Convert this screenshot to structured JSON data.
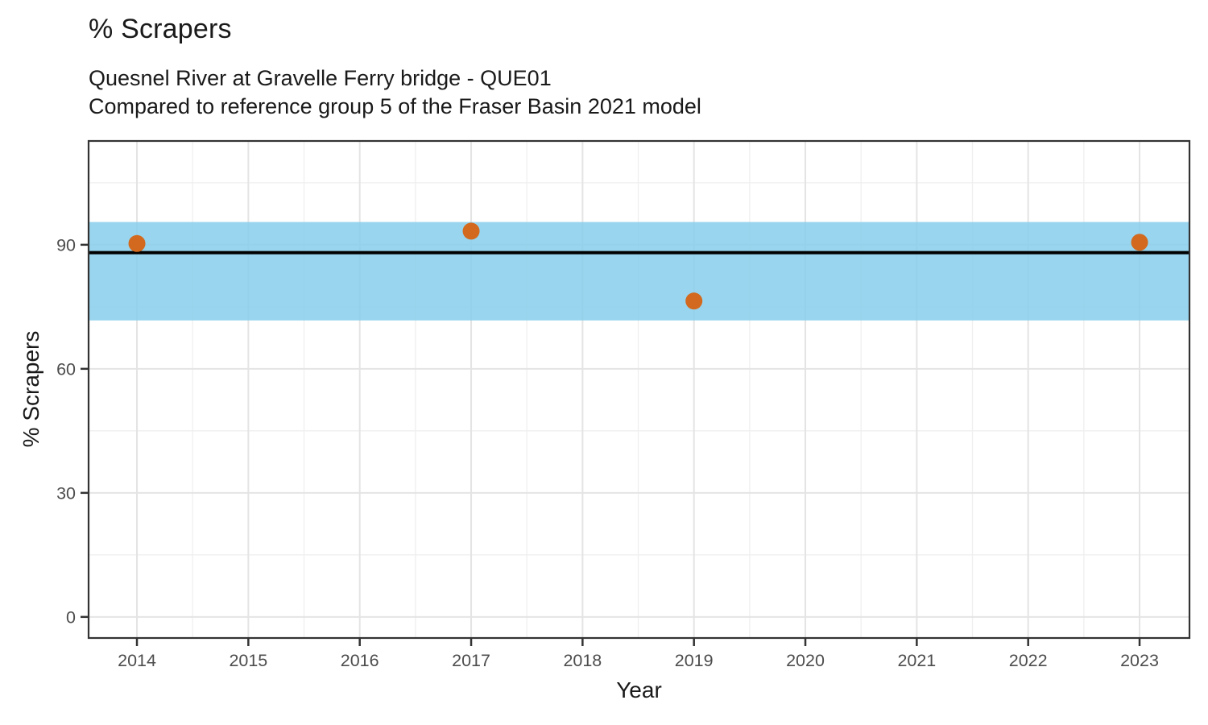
{
  "chart_data": {
    "type": "scatter",
    "title": "% Scrapers",
    "subtitle": [
      "Quesnel River at Gravelle Ferry bridge - QUE01",
      "Compared to reference group 5 of the Fraser Basin 2021 model"
    ],
    "xlabel": "Year",
    "ylabel": "% Scrapers",
    "x_ticks": [
      2014,
      2015,
      2016,
      2017,
      2018,
      2019,
      2020,
      2021,
      2022,
      2023
    ],
    "y_ticks": [
      0,
      30,
      60,
      90
    ],
    "xlim": [
      2013.566,
      2023.448
    ],
    "ylim": [
      -5.1,
      115.1
    ],
    "grid": true,
    "legend": "none",
    "points": [
      {
        "x": 2014,
        "y": 90.3
      },
      {
        "x": 2017,
        "y": 93.3
      },
      {
        "x": 2019,
        "y": 76.4
      },
      {
        "x": 2023,
        "y": 90.6
      }
    ],
    "reference_band": {
      "low": 71.7,
      "high": 95.5
    },
    "reference_line": 88.1,
    "colors": {
      "point": "#D2691E",
      "band": "#87CEEB",
      "band_opacity": 0.85,
      "reference_line": "#000000",
      "grid_major": "#E4E4E4",
      "grid_minor": "#EFEFEF",
      "panel_border": "#333333",
      "tick": "#333333",
      "tick_label": "#4D4D4D",
      "text": "#1A1A1A"
    }
  }
}
